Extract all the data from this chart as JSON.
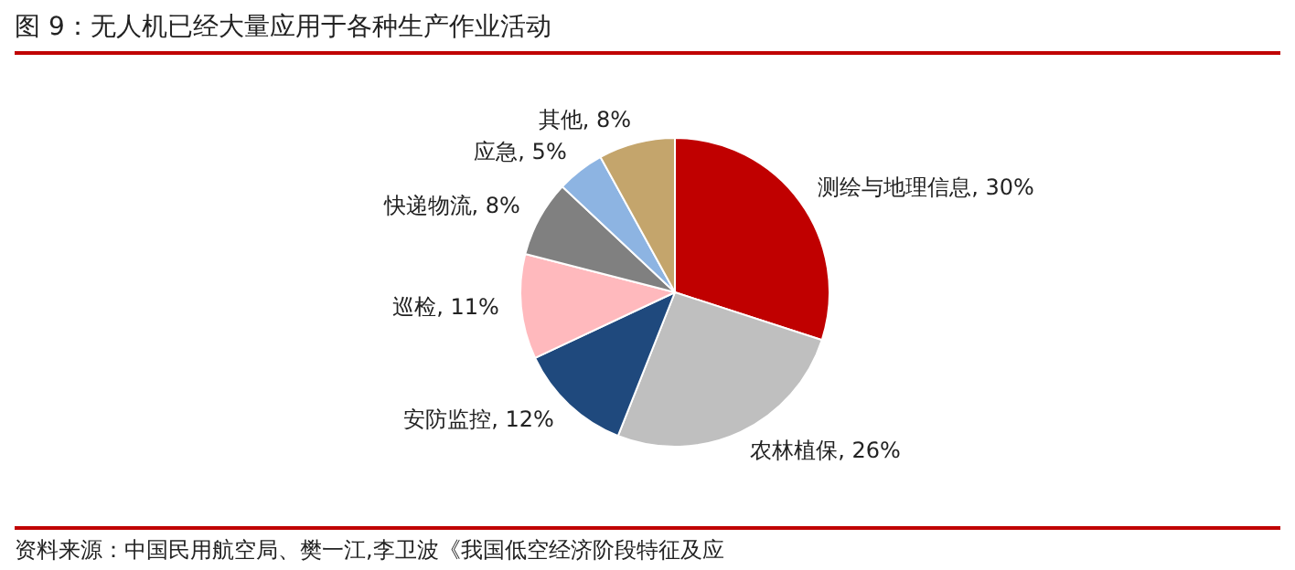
{
  "chart_data": {
    "type": "pie",
    "title": "图 9：无人机已经大量应用于各种生产作业活动",
    "categories": [
      "测绘与地理信息",
      "农林植保",
      "安防监控",
      "巡检",
      "快递物流",
      "应急",
      "其他"
    ],
    "values": [
      30,
      26,
      12,
      11,
      8,
      5,
      8
    ],
    "value_labels": [
      "30%",
      "26%",
      "12%",
      "11%",
      "8%",
      "5%",
      "8%"
    ],
    "colors": [
      "#c00000",
      "#bfbfbf",
      "#1f497d",
      "#ffb9bd",
      "#808080",
      "#8db4e2",
      "#c4a56c"
    ],
    "legend": false,
    "annotations": [
      "资料来源：中国民用航空局、樊一江,李卫波《我国低空经济阶段特征及应"
    ]
  }
}
